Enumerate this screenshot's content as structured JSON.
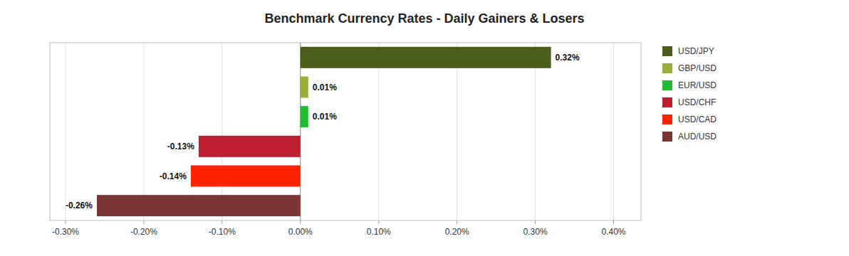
{
  "chart_data": {
    "type": "bar",
    "orientation": "horizontal",
    "title": "Benchmark Currency Rates - Daily Gainers & Losers",
    "categories": [
      "USD/JPY",
      "GBP/USD",
      "EUR/USD",
      "USD/CHF",
      "USD/CAD",
      "AUD/USD"
    ],
    "values": [
      0.32,
      0.01,
      0.01,
      -0.13,
      -0.14,
      -0.26
    ],
    "value_labels": [
      "0.32%",
      "0.01%",
      "0.01%",
      "-0.13%",
      "-0.14%",
      "-0.26%"
    ],
    "colors": [
      "#4a5e1a",
      "#9aad3a",
      "#22bb33",
      "#be1e2d",
      "#ff2200",
      "#7b3535"
    ],
    "data_labels": true,
    "xlim": [
      -0.32,
      0.435
    ],
    "xticks": [
      {
        "value": -0.3,
        "label": "-0.30%"
      },
      {
        "value": -0.2,
        "label": "-0.20%"
      },
      {
        "value": -0.1,
        "label": "-0.10%"
      },
      {
        "value": 0.0,
        "label": "0.00%"
      },
      {
        "value": 0.1,
        "label": "0.10%"
      },
      {
        "value": 0.2,
        "label": "0.20%"
      },
      {
        "value": 0.3,
        "label": "0.30%"
      },
      {
        "value": 0.4,
        "label": "0.40%"
      }
    ],
    "grid": true,
    "legend": "right",
    "tick_labels": "x"
  }
}
